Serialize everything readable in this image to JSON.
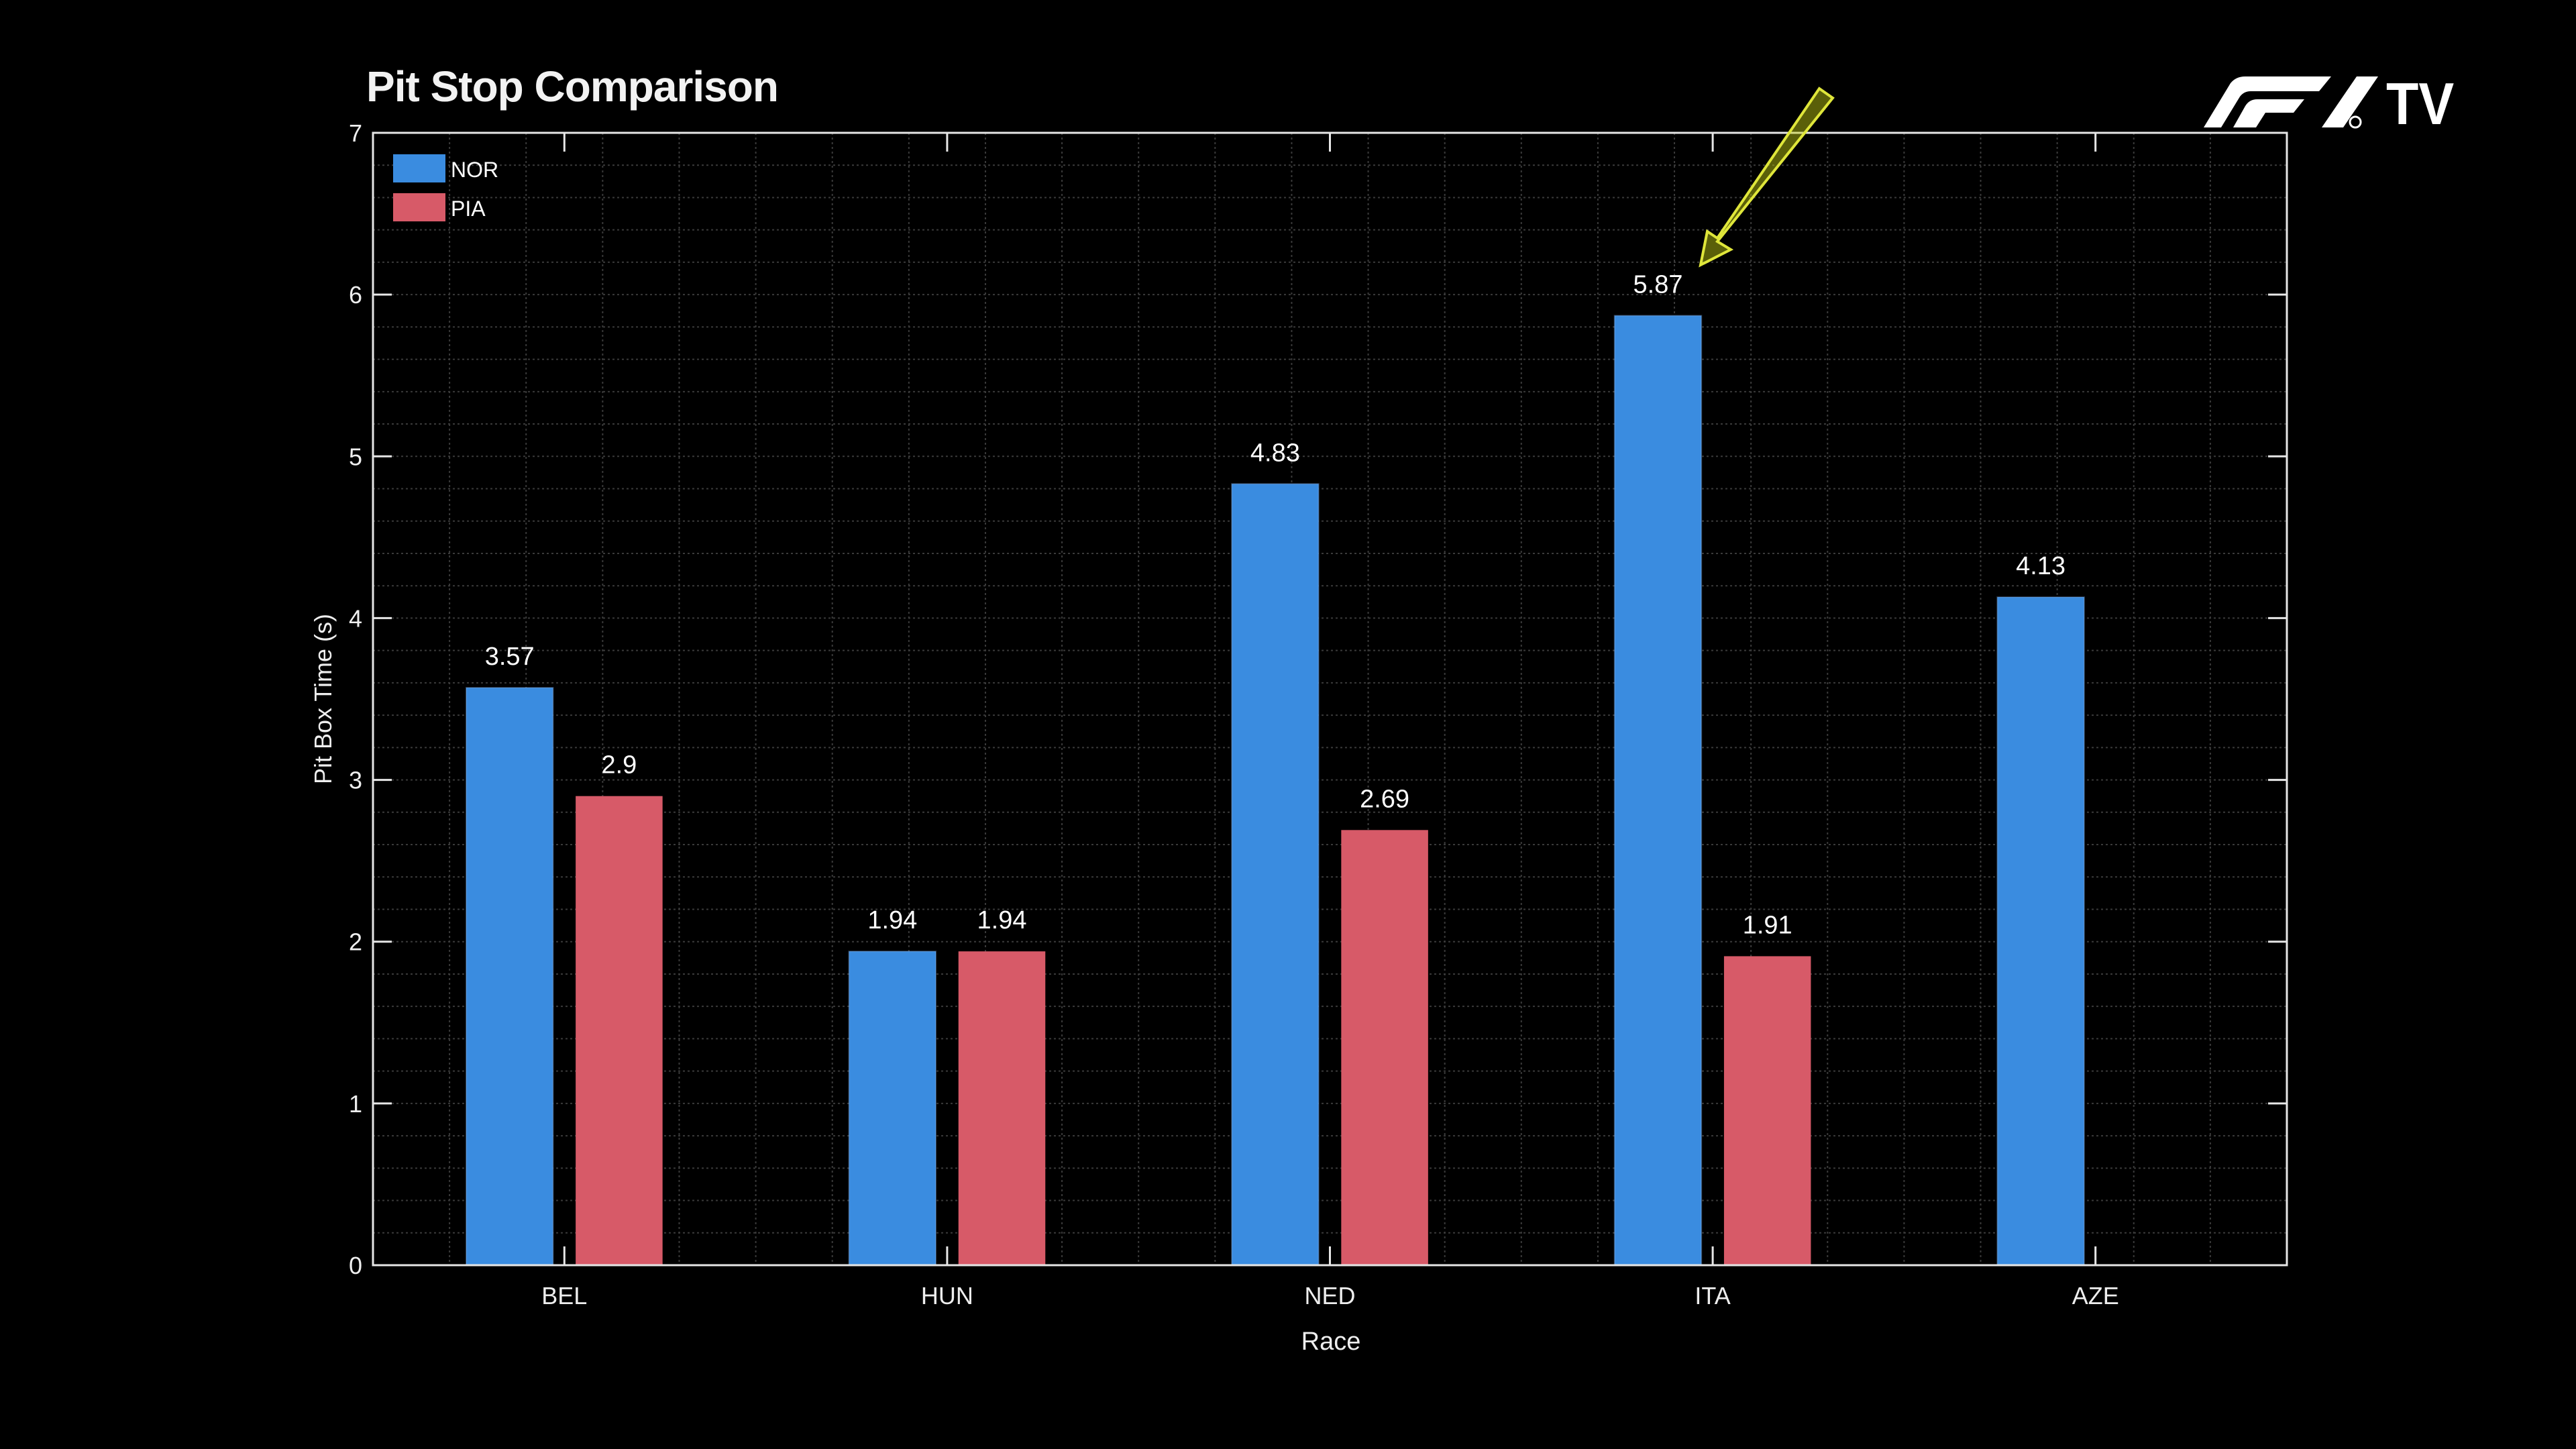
{
  "chart_data": {
    "type": "bar",
    "title": "Pit Stop Comparison",
    "xlabel": "Race",
    "ylabel": "Pit Box Time (s)",
    "categories": [
      "BEL",
      "HUN",
      "NED",
      "ITA",
      "AZE"
    ],
    "series": [
      {
        "name": "NOR",
        "color": "#3a8ce0",
        "values": [
          3.57,
          1.94,
          4.83,
          5.87,
          4.13
        ],
        "labels": [
          "3.57",
          "1.94",
          "4.83",
          "5.87",
          "4.13"
        ]
      },
      {
        "name": "PIA",
        "color": "#d75a68",
        "values": [
          2.9,
          1.94,
          2.69,
          1.91,
          null
        ],
        "labels": [
          "2.9",
          "1.94",
          "2.69",
          "1.91",
          null
        ]
      }
    ],
    "ylim": [
      0,
      7
    ],
    "yticks": [
      "0",
      "1",
      "2",
      "3",
      "4",
      "5",
      "6",
      "7"
    ],
    "grid": true,
    "legend": "top-left",
    "annotation": {
      "type": "arrow",
      "target": "ITA NOR 5.87",
      "color": "#d8e030"
    }
  },
  "branding": {
    "logo_text": "F1 TV",
    "tv": "TV"
  }
}
